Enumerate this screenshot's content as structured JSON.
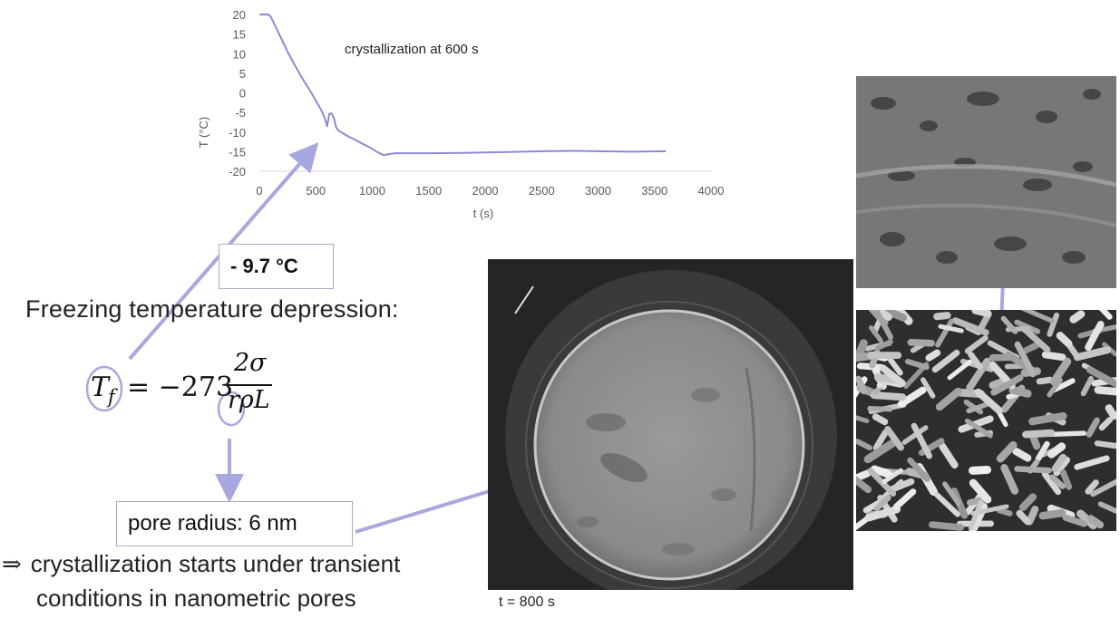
{
  "chart_data": {
    "type": "line",
    "title": "",
    "xlabel": "t (s)",
    "ylabel": "T (°C)",
    "xlim": [
      0,
      4000
    ],
    "ylim": [
      -20,
      20
    ],
    "x_ticks": [
      "0",
      "500",
      "1000",
      "1500",
      "2000",
      "2500",
      "3000",
      "3500",
      "4000"
    ],
    "y_ticks": [
      "20",
      "15",
      "10",
      "5",
      "0",
      "-5",
      "-10",
      "-15",
      "-20"
    ],
    "annotation": "crystallization at 600 s",
    "grid": false,
    "line_color": "#8a8ad8",
    "series": [
      {
        "x": [
          0,
          80,
          100,
          150,
          200,
          250,
          300,
          350,
          400,
          450,
          500,
          550,
          580,
          600,
          620,
          640,
          660,
          680,
          700,
          750,
          800,
          850,
          900,
          950,
          1000,
          1050,
          1100,
          1150,
          1200,
          1300,
          1500,
          1800,
          2000,
          2200,
          2500,
          2800,
          3000,
          3300,
          3600
        ],
        "y": [
          20,
          20,
          19.5,
          16.5,
          13.5,
          10.5,
          7.8,
          5.2,
          2.8,
          0.5,
          -2,
          -4.5,
          -6.5,
          -8.5,
          -5.3,
          -5.3,
          -6.5,
          -8.8,
          -9.6,
          -10.5,
          -11.3,
          -12,
          -12.8,
          -13.5,
          -14.3,
          -15.2,
          -15.9,
          -15.6,
          -15.4,
          -15.4,
          -15.4,
          -15.3,
          -15.2,
          -15.1,
          -14.9,
          -14.8,
          -14.9,
          -15,
          -14.9
        ]
      }
    ]
  },
  "labels": {
    "temperature_value": "- 9.7 °C",
    "heading": "Freezing temperature depression:",
    "pore_radius": "pore radius: 6 nm",
    "conclusion_symbol": "⇒",
    "conclusion_line1": "crystallization starts under transient",
    "conclusion_line2": "conditions in nanometric pores",
    "caption": "t = 800 s"
  },
  "formula": {
    "lhs": "T",
    "lhs_sub": "f",
    "equals": "= −273",
    "numerator": "2σ",
    "denominator": "rρL"
  },
  "colors": {
    "arrow": "#a8a8e0",
    "circle": "#a8a8e0",
    "box_border": "#a9a9c8"
  }
}
